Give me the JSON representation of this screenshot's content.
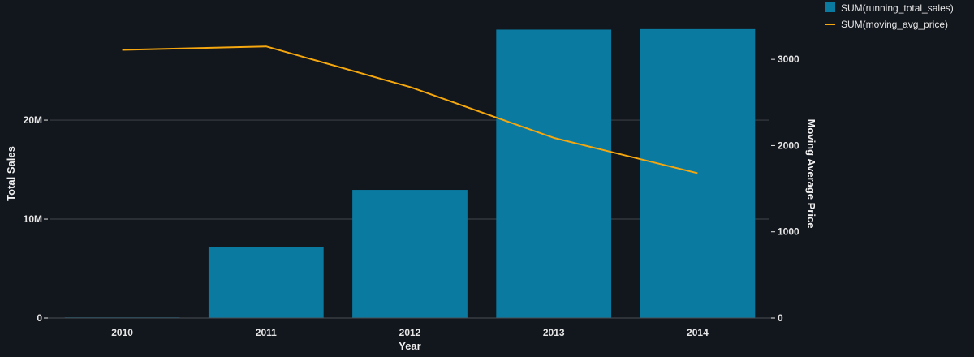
{
  "chart_data": {
    "type": "bar",
    "categories": [
      "2010",
      "2011",
      "2012",
      "2013",
      "2014"
    ],
    "xlabel": "Year",
    "ylabel": "Total Sales",
    "y2label": "Moving Average Price",
    "ylim": [
      0,
      30500000
    ],
    "y2lim": [
      0,
      3500
    ],
    "yticks": [
      {
        "value": 0,
        "label": "0"
      },
      {
        "value": 10000000,
        "label": "10M"
      },
      {
        "value": 20000000,
        "label": "20M"
      }
    ],
    "y2ticks": [
      {
        "value": 0,
        "label": "0"
      },
      {
        "value": 1000,
        "label": "1000"
      },
      {
        "value": 2000,
        "label": "2000"
      },
      {
        "value": 3000,
        "label": "3000"
      }
    ],
    "grid": true,
    "legend_position": "top-right",
    "series": [
      {
        "name": "SUM(running_total_sales)",
        "type": "bar",
        "axis": "left",
        "color": "#0a7aa0",
        "values": [
          60000,
          7150000,
          12950000,
          29150000,
          29200000
        ]
      },
      {
        "name": "SUM(moving_avg_price)",
        "type": "line",
        "axis": "right",
        "color": "#f5a70f",
        "values": [
          3110,
          3150,
          2680,
          2090,
          1680
        ]
      }
    ]
  }
}
